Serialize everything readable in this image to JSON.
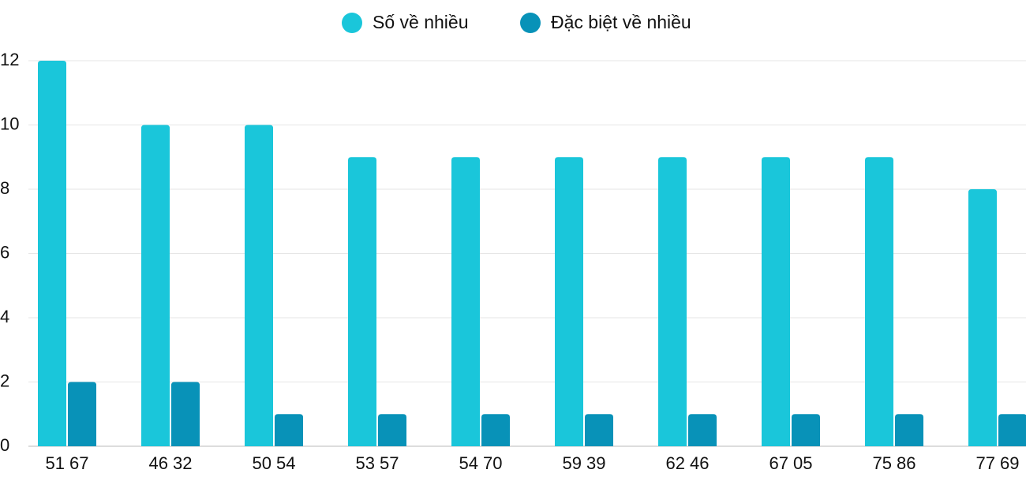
{
  "chart_data": {
    "type": "bar",
    "categories": [
      "51 67",
      "46 32",
      "50 54",
      "53 57",
      "54 70",
      "59 39",
      "62 46",
      "67 05",
      "75 86",
      "77 69"
    ],
    "series": [
      {
        "name": "Số về nhiều",
        "color": "#1ac6da",
        "values": [
          12,
          10,
          10,
          9,
          9,
          9,
          9,
          9,
          9,
          8
        ]
      },
      {
        "name": "Đặc biệt về nhiều",
        "color": "#0892b8",
        "values": [
          2,
          2,
          1,
          1,
          1,
          1,
          1,
          1,
          1,
          1
        ]
      }
    ],
    "ylim": [
      0,
      12
    ],
    "yticks": [
      0,
      2,
      4,
      6,
      8,
      10,
      12
    ],
    "grid": true,
    "legend": "top"
  }
}
